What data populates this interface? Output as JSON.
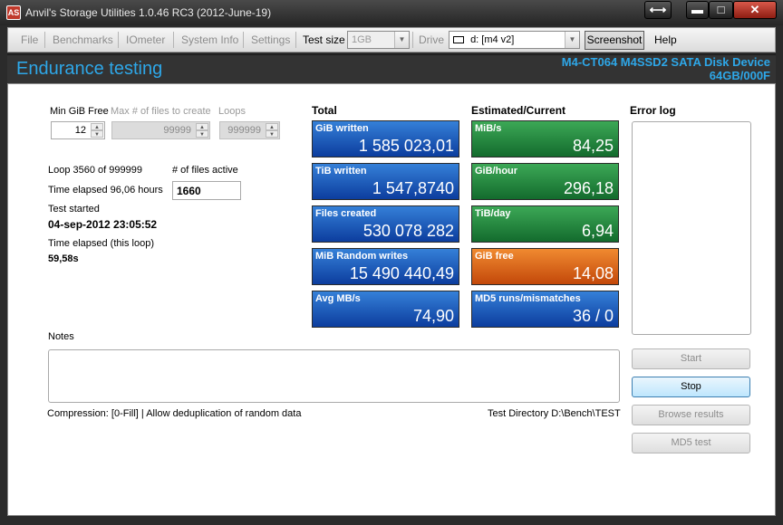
{
  "window": {
    "title": "Anvil's Storage Utilities 1.0.46 RC3 (2012-June-19)",
    "icon_text": "AS",
    "restore_glyph": "⟷",
    "minimize_glyph": "▬",
    "maximize_glyph": "□",
    "close_glyph": "✕"
  },
  "menubar": {
    "file": "File",
    "benchmarks": "Benchmarks",
    "iometer": "IOmeter",
    "system_info": "System Info",
    "settings": "Settings",
    "test_size_label": "Test size",
    "test_size_value": "1GB",
    "drive_label": "Drive",
    "drive_value": "d: [m4 v2]",
    "screenshot": "Screenshot",
    "help": "Help"
  },
  "header": {
    "title": "Endurance testing",
    "device": "M4-CT064 M4SSD2 SATA Disk Device",
    "capacity": "64GB/000F"
  },
  "settings": {
    "min_gib_free_label": "Min GiB Free",
    "min_gib_free_value": "12",
    "max_files_label": "Max # of files to create",
    "max_files_value": "99999",
    "loops_label": "Loops",
    "loops_value": "999999"
  },
  "status": {
    "loop": "Loop 3560 of 999999",
    "files_active_label": "# of files active",
    "files_active_value": "1660",
    "time_elapsed": "Time elapsed 96,06 hours",
    "test_started_label": "Test started",
    "test_started_value": "04-sep-2012 23:05:52",
    "loop_elapsed_label": "Time elapsed (this loop)",
    "loop_elapsed_value": "59,58s"
  },
  "total": {
    "heading": "Total",
    "tiles": [
      {
        "label": "GiB written",
        "value": "1 585 023,01"
      },
      {
        "label": "TiB written",
        "value": "1 547,8740"
      },
      {
        "label": "Files created",
        "value": "530 078 282"
      },
      {
        "label": "MiB Random writes",
        "value": "15 490 440,49"
      },
      {
        "label": "Avg MB/s",
        "value": "74,90"
      }
    ]
  },
  "current": {
    "heading": "Estimated/Current",
    "tiles": [
      {
        "label": "MiB/s",
        "value": "84,25",
        "color": "green"
      },
      {
        "label": "GiB/hour",
        "value": "296,18",
        "color": "green"
      },
      {
        "label": "TiB/day",
        "value": "6,94",
        "color": "green"
      },
      {
        "label": "GiB free",
        "value": "14,08",
        "color": "orange"
      },
      {
        "label": "MD5 runs/mismatches",
        "value": "36 / 0",
        "color": "blue"
      }
    ]
  },
  "error_log": {
    "heading": "Error log"
  },
  "notes": {
    "label": "Notes"
  },
  "footer": {
    "compression": "Compression: [0-Fill]  | Allow deduplication of random data",
    "test_directory": "Test Directory D:\\Bench\\TEST"
  },
  "buttons": {
    "start": "Start",
    "stop": "Stop",
    "browse": "Browse results",
    "md5": "MD5 test"
  }
}
